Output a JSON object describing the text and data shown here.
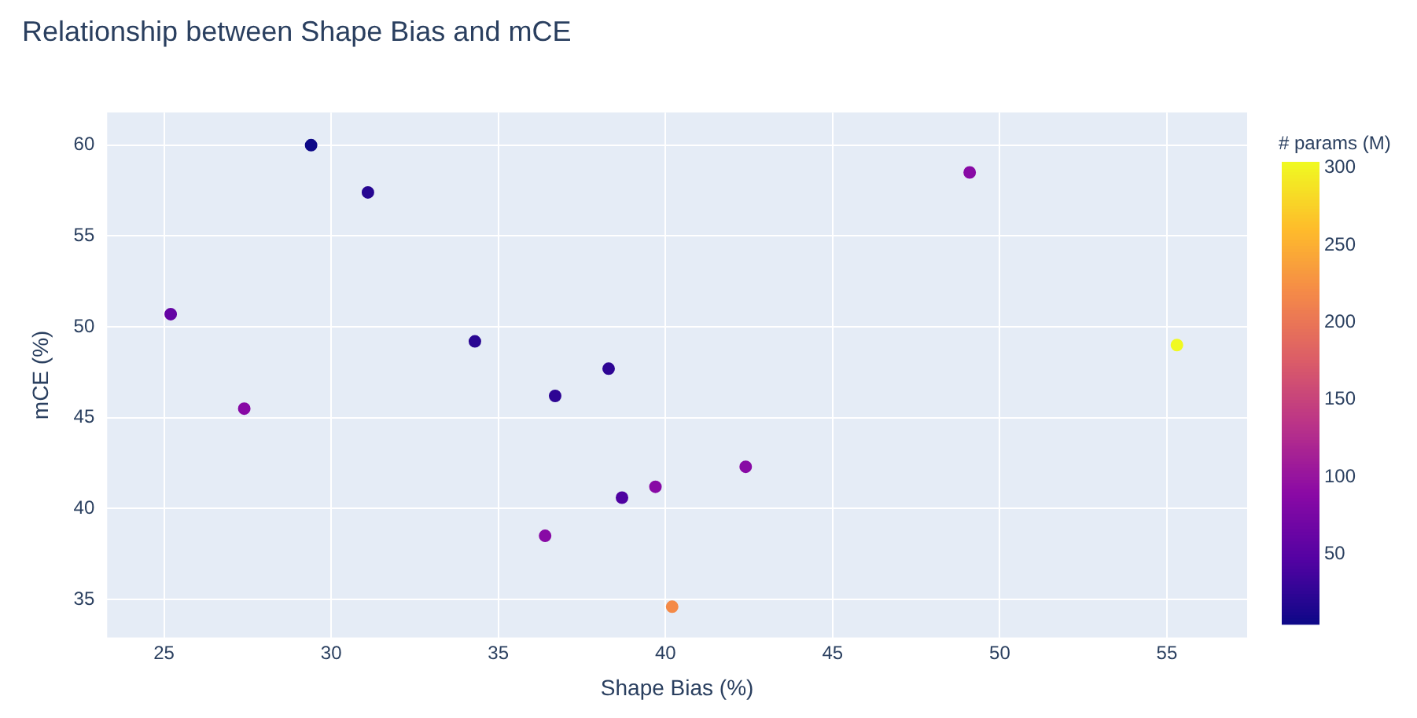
{
  "chart_data": {
    "type": "scatter",
    "title": "Relationship between Shape Bias and mCE",
    "xlabel": "Shape Bias (%)",
    "ylabel": "mCE (%)",
    "clabel": "# params (M)",
    "x": [
      25.2,
      29.4,
      31.1,
      27.4,
      34.3,
      36.7,
      38.3,
      36.4,
      38.7,
      39.7,
      42.4,
      40.2,
      49.1,
      55.3
    ],
    "values": [
      50.7,
      60.0,
      57.4,
      45.5,
      49.2,
      46.2,
      47.7,
      38.5,
      40.6,
      41.2,
      42.3,
      34.6,
      58.5,
      49.0
    ],
    "cvalues": [
      60,
      5,
      20,
      87,
      22,
      25,
      25,
      88,
      45,
      88,
      88,
      220,
      88,
      304
    ],
    "clim": [
      5,
      304
    ],
    "cticks": [
      50,
      100,
      150,
      200,
      250,
      300
    ],
    "xlim": [
      23.3,
      57.4
    ],
    "xticks": [
      25,
      30,
      35,
      40,
      45,
      50,
      55
    ],
    "ylim": [
      32.9,
      61.8
    ],
    "yticks": [
      35,
      40,
      45,
      50,
      55,
      60
    ],
    "grid": true,
    "marker": "circle"
  }
}
